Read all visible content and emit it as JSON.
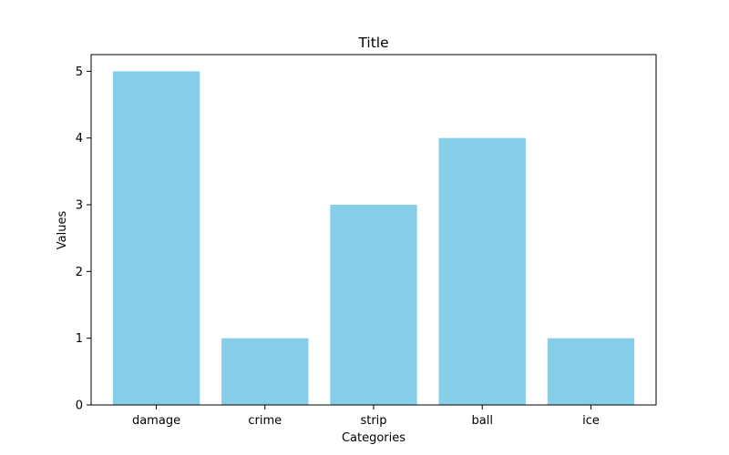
{
  "chart_data": {
    "type": "bar",
    "title": "Title",
    "xlabel": "Categories",
    "ylabel": "Values",
    "categories": [
      "damage",
      "crime",
      "strip",
      "ball",
      "ice"
    ],
    "values": [
      5,
      1,
      3,
      4,
      1
    ],
    "ylim": [
      0,
      5.25
    ],
    "yticks": [
      0,
      1,
      2,
      3,
      4,
      5
    ],
    "grid": false,
    "legend": "none",
    "bar_color": "#87ceeb",
    "axis_color": "#000000"
  }
}
